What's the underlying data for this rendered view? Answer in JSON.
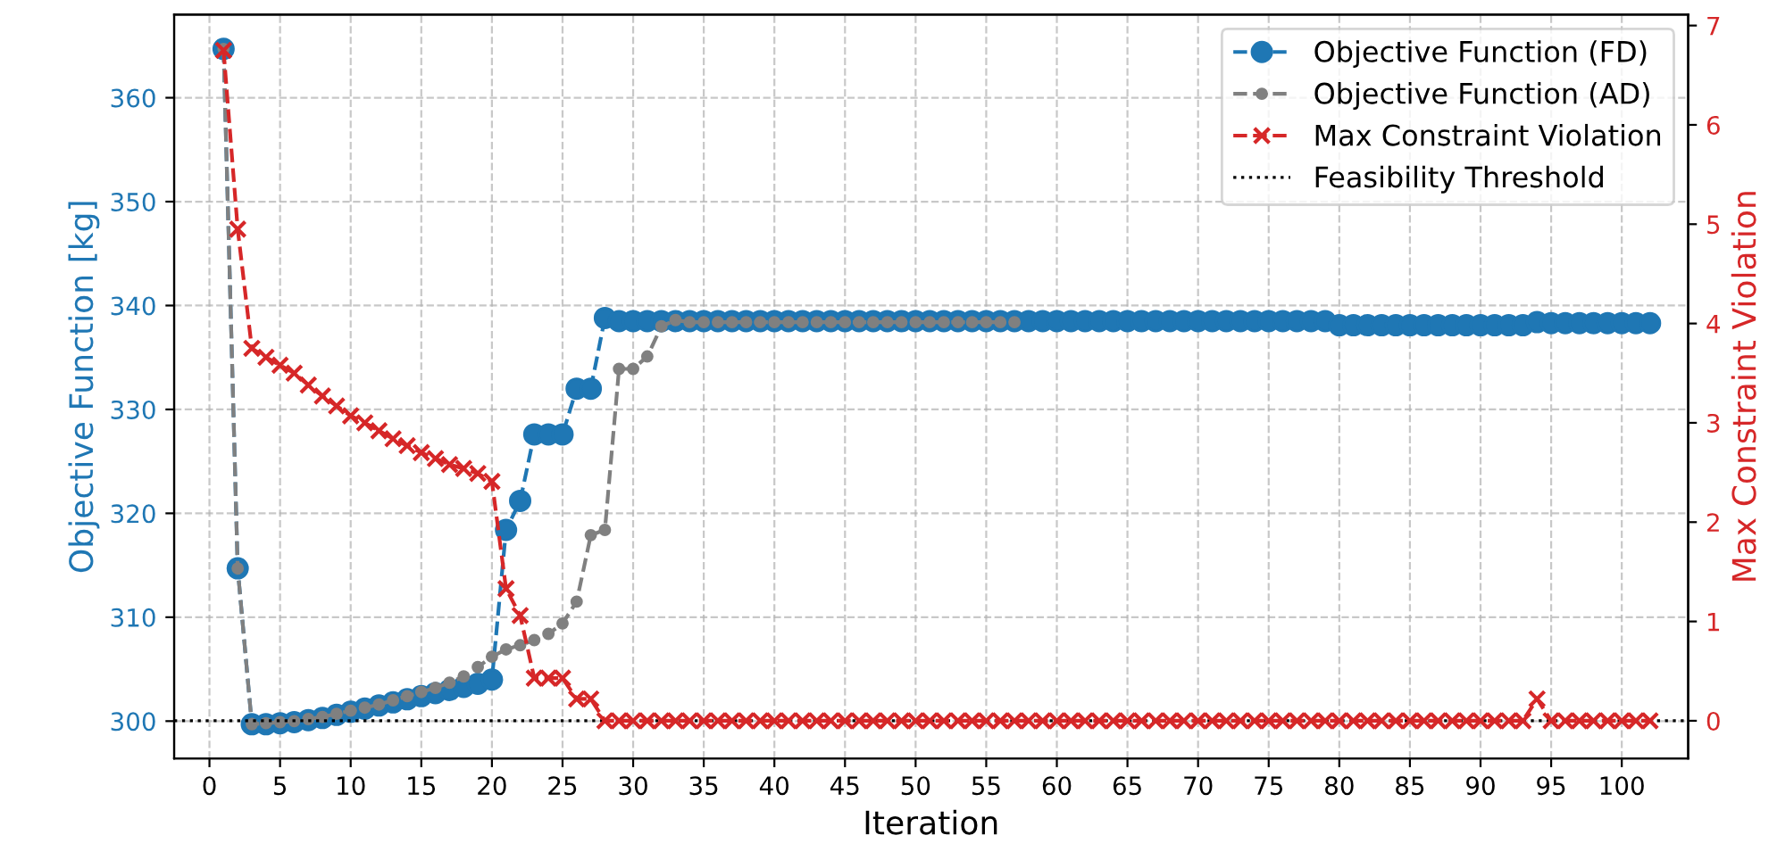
{
  "chart_data": {
    "type": "line",
    "xlabel": "Iteration",
    "ylabel": "Objective Function [kg]",
    "y2label": "Max Constraint Violation",
    "xlim": [
      -2.5,
      104.7
    ],
    "xticks": [
      0,
      5,
      10,
      15,
      20,
      25,
      30,
      35,
      40,
      45,
      50,
      55,
      60,
      65,
      70,
      75,
      80,
      85,
      90,
      95,
      100
    ],
    "ylim": [
      296.4,
      368
    ],
    "yticks": [
      300,
      310,
      320,
      330,
      340,
      350,
      360
    ],
    "y2lim": [
      -0.38,
      7.11
    ],
    "y2ticks": [
      0,
      1,
      2,
      3,
      4,
      5,
      6,
      7
    ],
    "grid": true,
    "legend": "top right",
    "ref_lines": [
      {
        "axis": "y2",
        "value": 0,
        "label": "Feasibility Threshold",
        "color": "#000000",
        "line_style": "dotted"
      }
    ],
    "series": [
      {
        "name": "Objective Function (FD)",
        "color": "#1f77b4",
        "marker": "circle",
        "line_style": "dashed",
        "x": [
          1,
          2,
          3,
          4,
          5,
          6,
          7,
          8,
          9,
          10,
          11,
          12,
          13,
          14,
          15,
          16,
          17,
          18,
          19,
          20,
          21,
          22,
          23,
          24,
          25,
          26,
          27,
          28,
          29,
          30,
          31,
          32,
          33,
          34,
          35,
          36,
          37,
          38,
          39,
          40,
          41,
          42,
          43,
          44,
          45,
          46,
          47,
          48,
          49,
          50,
          51,
          52,
          53,
          54,
          55,
          56,
          57,
          58,
          59,
          60,
          61,
          62,
          63,
          64,
          65,
          66,
          67,
          68,
          69,
          70,
          71,
          72,
          73,
          74,
          75,
          76,
          77,
          78,
          79,
          80,
          81,
          82,
          83,
          84,
          85,
          86,
          87,
          88,
          89,
          90,
          91,
          92,
          93,
          94,
          95,
          96,
          97,
          98,
          99,
          100,
          101,
          102
        ],
        "values": [
          364.7,
          314.7,
          299.7,
          299.7,
          299.8,
          299.9,
          300.1,
          300.3,
          300.6,
          300.9,
          301.2,
          301.5,
          301.8,
          302.1,
          302.4,
          302.7,
          303.0,
          303.3,
          303.6,
          304.0,
          318.4,
          321.2,
          327.6,
          327.6,
          327.6,
          332.0,
          332.0,
          338.8,
          338.5,
          338.5,
          338.5,
          338.5,
          338.5,
          338.5,
          338.5,
          338.5,
          338.5,
          338.5,
          338.5,
          338.5,
          338.5,
          338.5,
          338.5,
          338.5,
          338.5,
          338.5,
          338.5,
          338.5,
          338.5,
          338.5,
          338.5,
          338.5,
          338.5,
          338.5,
          338.5,
          338.5,
          338.5,
          338.5,
          338.5,
          338.5,
          338.5,
          338.5,
          338.5,
          338.5,
          338.5,
          338.5,
          338.5,
          338.5,
          338.5,
          338.5,
          338.5,
          338.5,
          338.5,
          338.5,
          338.5,
          338.5,
          338.5,
          338.5,
          338.5,
          338.1,
          338.1,
          338.1,
          338.1,
          338.1,
          338.1,
          338.1,
          338.1,
          338.1,
          338.1,
          338.1,
          338.1,
          338.1,
          338.1,
          338.4,
          338.3,
          338.3,
          338.3,
          338.3,
          338.3,
          338.3,
          338.3,
          338.3
        ]
      },
      {
        "name": "Objective Function (AD)",
        "color": "#808080",
        "marker": "circle",
        "line_style": "dashed",
        "x": [
          1,
          2,
          3,
          4,
          5,
          6,
          7,
          8,
          9,
          10,
          11,
          12,
          13,
          14,
          15,
          16,
          17,
          18,
          19,
          20,
          21,
          22,
          23,
          24,
          25,
          26,
          27,
          28,
          29,
          30,
          31,
          32,
          33,
          34,
          35,
          36,
          37,
          38,
          39,
          40,
          41,
          42,
          43,
          44,
          45,
          46,
          47,
          48,
          49,
          50,
          51,
          52,
          53,
          54,
          55,
          56,
          57
        ],
        "values": [
          364.7,
          314.7,
          299.7,
          299.8,
          299.9,
          300.0,
          300.2,
          300.4,
          300.7,
          301.0,
          301.3,
          301.6,
          302.0,
          302.4,
          302.8,
          303.2,
          303.7,
          304.3,
          305.2,
          306.2,
          306.9,
          307.3,
          307.8,
          308.4,
          309.4,
          311.5,
          317.9,
          318.4,
          333.9,
          333.9,
          335.1,
          338.0,
          338.6,
          338.4,
          338.4,
          338.4,
          338.4,
          338.4,
          338.4,
          338.4,
          338.4,
          338.4,
          338.4,
          338.4,
          338.4,
          338.4,
          338.4,
          338.4,
          338.4,
          338.4,
          338.4,
          338.4,
          338.4,
          338.4,
          338.4,
          338.4,
          338.4
        ]
      },
      {
        "name": "Max Constraint Violation",
        "color": "#d62728",
        "marker": "cross",
        "line_style": "dashed",
        "axis": "y2",
        "x": [
          1,
          2,
          3,
          4,
          5,
          6,
          7,
          8,
          9,
          10,
          11,
          12,
          13,
          14,
          15,
          16,
          17,
          18,
          19,
          20,
          21,
          22,
          23,
          24,
          25,
          26,
          27,
          28,
          29,
          30,
          31,
          32,
          33,
          34,
          35,
          36,
          37,
          38,
          39,
          40,
          41,
          42,
          43,
          44,
          45,
          46,
          47,
          48,
          49,
          50,
          51,
          52,
          53,
          54,
          55,
          56,
          57,
          58,
          59,
          60,
          61,
          62,
          63,
          64,
          65,
          66,
          67,
          68,
          69,
          70,
          71,
          72,
          73,
          74,
          75,
          76,
          77,
          78,
          79,
          80,
          81,
          82,
          83,
          84,
          85,
          86,
          87,
          88,
          89,
          90,
          91,
          92,
          93,
          94,
          95,
          96,
          97,
          98,
          99,
          100,
          101,
          102
        ],
        "values": [
          6.75,
          4.95,
          3.75,
          3.66,
          3.58,
          3.5,
          3.38,
          3.27,
          3.17,
          3.07,
          3.0,
          2.92,
          2.84,
          2.77,
          2.7,
          2.64,
          2.58,
          2.54,
          2.49,
          2.41,
          1.33,
          1.06,
          0.43,
          0.43,
          0.43,
          0.22,
          0.22,
          0,
          0,
          0,
          0,
          0,
          0,
          0,
          0,
          0,
          0,
          0,
          0,
          0,
          0,
          0,
          0,
          0,
          0,
          0,
          0,
          0,
          0,
          0,
          0,
          0,
          0,
          0,
          0,
          0,
          0,
          0,
          0,
          0,
          0,
          0,
          0,
          0,
          0,
          0,
          0,
          0,
          0,
          0,
          0,
          0,
          0,
          0,
          0,
          0,
          0,
          0,
          0,
          0,
          0,
          0,
          0,
          0,
          0,
          0,
          0,
          0,
          0,
          0,
          0,
          0,
          0,
          0.22,
          0,
          0,
          0,
          0,
          0,
          0,
          0,
          0
        ]
      }
    ]
  }
}
